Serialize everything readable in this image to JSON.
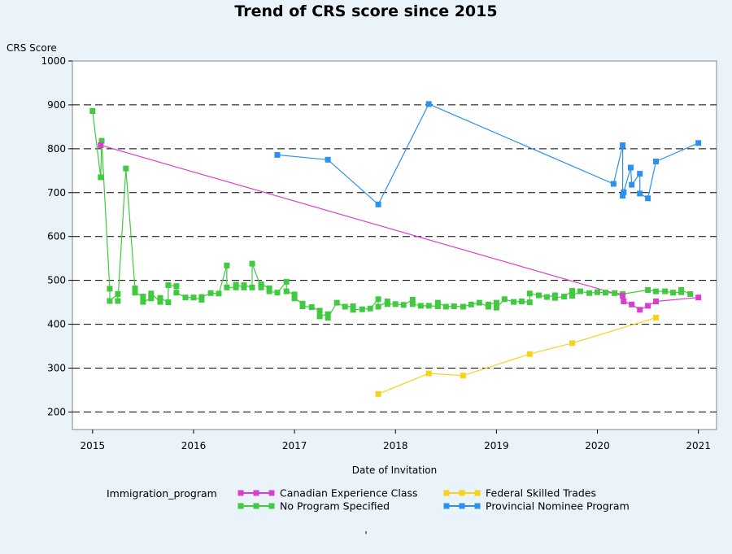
{
  "chart_data": {
    "type": "line",
    "title": "Trend of CRS score since 2015",
    "ylabel": "CRS Score",
    "xlabel": "Date of Invitation",
    "ylim": [
      160,
      1000
    ],
    "xlim": [
      2014.8,
      2021.18
    ],
    "yticks": [
      200,
      300,
      400,
      500,
      600,
      700,
      800,
      900,
      1000
    ],
    "xticks": [
      2015,
      2016,
      2017,
      2018,
      2019,
      2020,
      2021
    ],
    "ytick_labels": [
      "200",
      "300",
      "400",
      "500",
      "600",
      "700",
      "800",
      "900",
      "1000"
    ],
    "xtick_labels": [
      "2015",
      "2016",
      "2017",
      "2018",
      "2019",
      "2020",
      "2021"
    ],
    "grid": "horizontal dashed",
    "legend_title": "Immigration_program",
    "footnote": "'",
    "series": [
      {
        "name": "Canadian Experience Class",
        "color": "#d93fcf",
        "points": [
          [
            2015.08,
            808
          ],
          [
            2020.25,
            465
          ],
          [
            2020.26,
            452
          ],
          [
            2020.34,
            445
          ],
          [
            2020.42,
            433
          ],
          [
            2020.5,
            442
          ],
          [
            2020.58,
            452
          ],
          [
            2021.0,
            461
          ]
        ]
      },
      {
        "name": "Federal Skilled Trades",
        "color": "#f7d219",
        "points": [
          [
            2017.83,
            241
          ],
          [
            2018.33,
            288
          ],
          [
            2018.67,
            283
          ],
          [
            2019.33,
            332
          ],
          [
            2019.75,
            357
          ],
          [
            2020.58,
            415
          ]
        ]
      },
      {
        "name": "No Program Specified",
        "color": "#3fca3f",
        "points": [
          [
            2015.0,
            886
          ],
          [
            2015.08,
            735
          ],
          [
            2015.09,
            818
          ],
          [
            2015.17,
            481
          ],
          [
            2015.17,
            453
          ],
          [
            2015.25,
            469
          ],
          [
            2015.25,
            453
          ],
          [
            2015.33,
            755
          ],
          [
            2015.42,
            482
          ],
          [
            2015.42,
            472
          ],
          [
            2015.5,
            463
          ],
          [
            2015.5,
            451
          ],
          [
            2015.58,
            459
          ],
          [
            2015.58,
            470
          ],
          [
            2015.67,
            451
          ],
          [
            2015.67,
            460
          ],
          [
            2015.75,
            450
          ],
          [
            2015.75,
            489
          ],
          [
            2015.83,
            487
          ],
          [
            2015.83,
            472
          ],
          [
            2015.92,
            461
          ],
          [
            2016.0,
            461
          ],
          [
            2016.08,
            456
          ],
          [
            2016.08,
            462
          ],
          [
            2016.17,
            471
          ],
          [
            2016.25,
            470
          ],
          [
            2016.33,
            534
          ],
          [
            2016.33,
            484
          ],
          [
            2016.42,
            484
          ],
          [
            2016.42,
            490
          ],
          [
            2016.5,
            484
          ],
          [
            2016.5,
            489
          ],
          [
            2016.58,
            484
          ],
          [
            2016.58,
            538
          ],
          [
            2016.67,
            484
          ],
          [
            2016.67,
            491
          ],
          [
            2016.75,
            482
          ],
          [
            2016.75,
            475
          ],
          [
            2016.83,
            472
          ],
          [
            2016.92,
            497
          ],
          [
            2016.92,
            475
          ],
          [
            2017.0,
            468
          ],
          [
            2017.0,
            459
          ],
          [
            2017.08,
            447
          ],
          [
            2017.08,
            441
          ],
          [
            2017.17,
            439
          ],
          [
            2017.25,
            431
          ],
          [
            2017.25,
            418
          ],
          [
            2017.33,
            423
          ],
          [
            2017.33,
            415
          ],
          [
            2017.42,
            449
          ],
          [
            2017.5,
            440
          ],
          [
            2017.58,
            441
          ],
          [
            2017.58,
            433
          ],
          [
            2017.67,
            434
          ],
          [
            2017.75,
            436
          ],
          [
            2017.83,
            457
          ],
          [
            2017.83,
            440
          ],
          [
            2017.92,
            452
          ],
          [
            2017.92,
            446
          ],
          [
            2018.0,
            446
          ],
          [
            2018.08,
            444
          ],
          [
            2018.17,
            456
          ],
          [
            2018.17,
            446
          ],
          [
            2018.25,
            442
          ],
          [
            2018.33,
            442
          ],
          [
            2018.42,
            441
          ],
          [
            2018.42,
            449
          ],
          [
            2018.5,
            440
          ],
          [
            2018.58,
            441
          ],
          [
            2018.67,
            440
          ],
          [
            2018.75,
            445
          ],
          [
            2018.83,
            449
          ],
          [
            2018.92,
            440
          ],
          [
            2018.92,
            445
          ],
          [
            2019.0,
            449
          ],
          [
            2019.0,
            438
          ],
          [
            2019.08,
            457
          ],
          [
            2019.17,
            451
          ],
          [
            2019.25,
            452
          ],
          [
            2019.33,
            450
          ],
          [
            2019.33,
            470
          ],
          [
            2019.42,
            466
          ],
          [
            2019.5,
            462
          ],
          [
            2019.58,
            466
          ],
          [
            2019.58,
            460
          ],
          [
            2019.67,
            463
          ],
          [
            2019.75,
            476
          ],
          [
            2019.75,
            465
          ],
          [
            2019.83,
            475
          ],
          [
            2019.92,
            471
          ],
          [
            2020.0,
            473
          ],
          [
            2020.08,
            472
          ],
          [
            2020.17,
            471
          ],
          [
            2020.25,
            469
          ],
          [
            2020.5,
            478
          ],
          [
            2020.58,
            475
          ],
          [
            2020.67,
            475
          ],
          [
            2020.75,
            472
          ],
          [
            2020.83,
            473
          ],
          [
            2020.83,
            478
          ],
          [
            2020.92,
            469
          ]
        ]
      },
      {
        "name": "Provincial Nominee Program",
        "color": "#2b91f0",
        "points": [
          [
            2016.83,
            786
          ],
          [
            2017.33,
            775
          ],
          [
            2017.83,
            673
          ],
          [
            2018.33,
            902
          ],
          [
            2020.16,
            720
          ],
          [
            2020.25,
            808
          ],
          [
            2020.25,
            693
          ],
          [
            2020.26,
            701
          ],
          [
            2020.33,
            757
          ],
          [
            2020.34,
            718
          ],
          [
            2020.42,
            743
          ],
          [
            2020.42,
            698
          ],
          [
            2020.5,
            687
          ],
          [
            2020.58,
            771
          ],
          [
            2021.0,
            813
          ]
        ]
      }
    ]
  }
}
